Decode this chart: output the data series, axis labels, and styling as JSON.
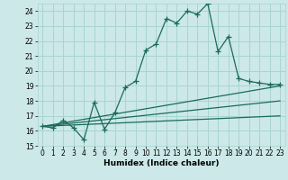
{
  "title": "",
  "xlabel": "Humidex (Indice chaleur)",
  "ylabel": "",
  "xlim": [
    -0.5,
    23.5
  ],
  "ylim": [
    15,
    24.5
  ],
  "yticks": [
    15,
    16,
    17,
    18,
    19,
    20,
    21,
    22,
    23,
    24
  ],
  "xticks": [
    0,
    1,
    2,
    3,
    4,
    5,
    6,
    7,
    8,
    9,
    10,
    11,
    12,
    13,
    14,
    15,
    16,
    17,
    18,
    19,
    20,
    21,
    22,
    23
  ],
  "bg_color": "#cce8e8",
  "grid_color": "#aad4d4",
  "line_color": "#1a6b5a",
  "lines": [
    {
      "x": [
        0,
        1,
        2,
        3,
        4,
        5,
        6,
        7,
        8,
        9,
        10,
        11,
        12,
        13,
        14,
        15,
        16,
        17,
        18,
        19,
        20,
        21,
        22,
        23
      ],
      "y": [
        16.3,
        16.2,
        16.7,
        16.2,
        15.4,
        17.9,
        16.1,
        17.2,
        18.9,
        19.3,
        21.4,
        21.8,
        23.5,
        23.2,
        24.0,
        23.8,
        24.5,
        21.3,
        22.3,
        19.5,
        19.3,
        19.2,
        19.1,
        19.1
      ],
      "has_markers": true
    },
    {
      "x": [
        0,
        23
      ],
      "y": [
        16.3,
        19.0
      ],
      "has_markers": false
    },
    {
      "x": [
        0,
        23
      ],
      "y": [
        16.3,
        18.0
      ],
      "has_markers": false
    },
    {
      "x": [
        0,
        23
      ],
      "y": [
        16.3,
        17.0
      ],
      "has_markers": false
    }
  ],
  "marker": "+",
  "markersize": 4,
  "linewidth": 0.9,
  "tick_fontsize": 5.5,
  "xlabel_fontsize": 6.5
}
